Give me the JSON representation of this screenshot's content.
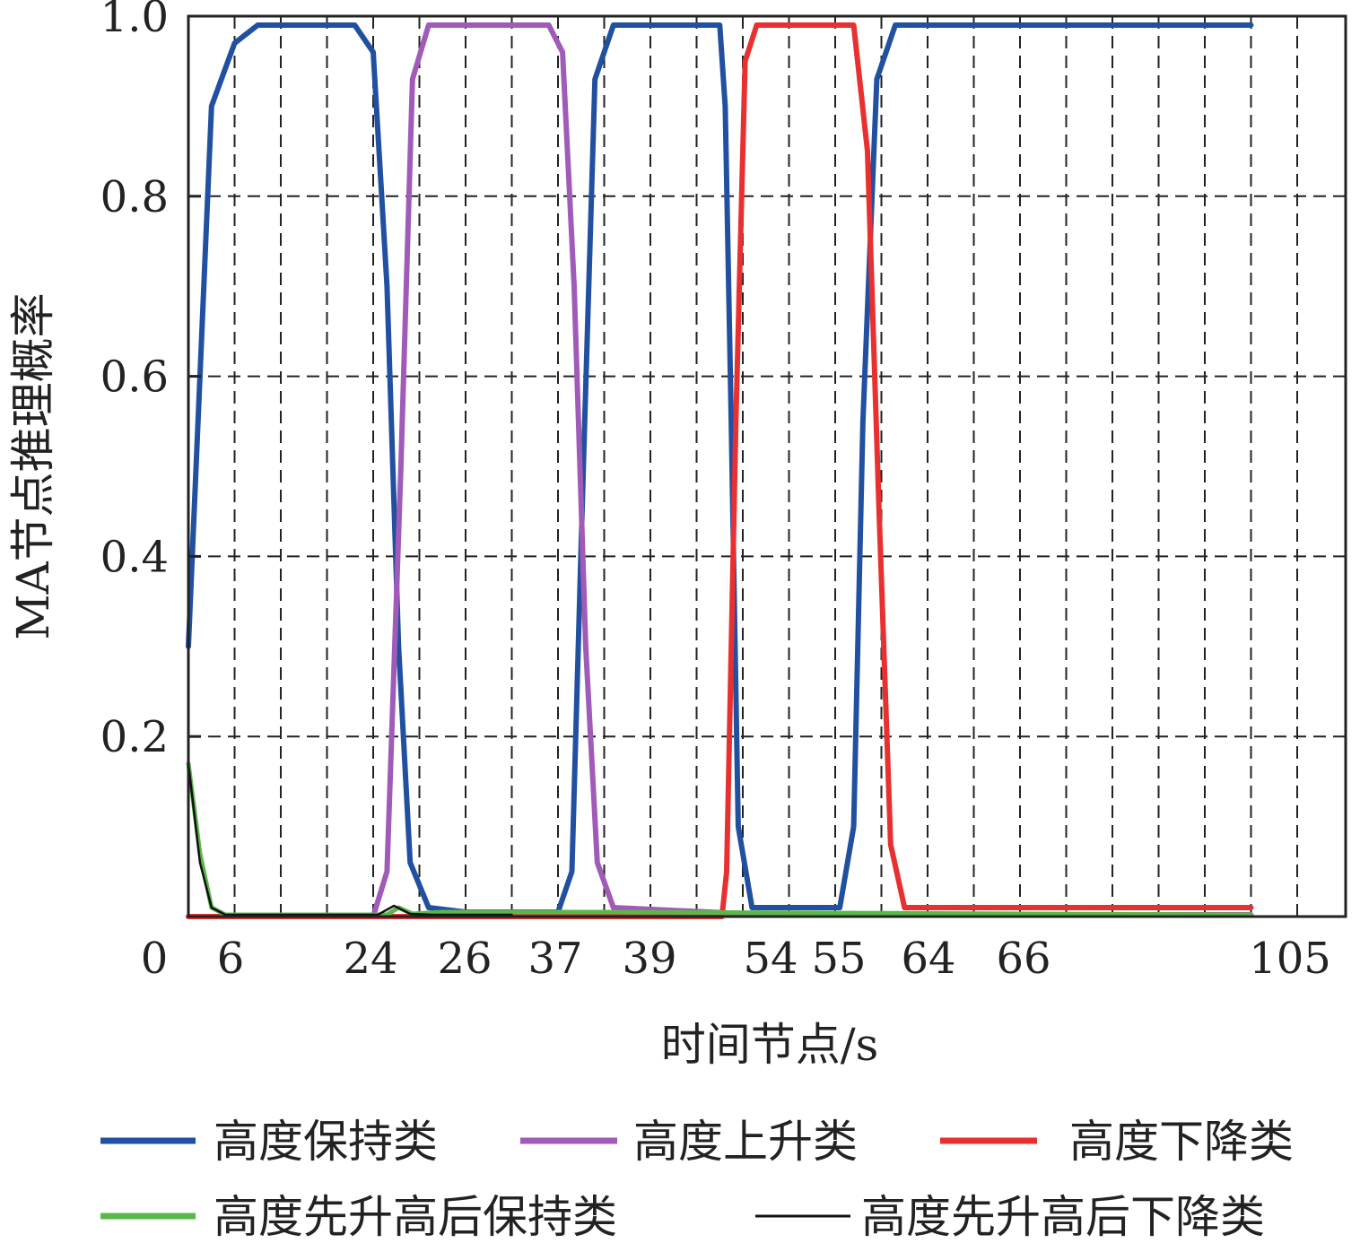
{
  "chart_data": {
    "type": "line",
    "xlabel": "时间节点/s",
    "ylabel": "MA节点推理概率",
    "ylim": [
      0,
      1.0
    ],
    "y_ticks": [
      "0.2",
      "0.4",
      "0.6",
      "0.8",
      "1.0"
    ],
    "x_ticks": [
      "0",
      "6",
      "24",
      "26",
      "37",
      "39",
      "54",
      "55",
      "64",
      "66",
      "105"
    ],
    "grid": true,
    "legend_position": "bottom",
    "series": [
      {
        "name": "高度保持类",
        "color": "#2150a0",
        "points": [
          [
            0,
            0.3
          ],
          [
            0.5,
            0.9
          ],
          [
            1,
            0.97
          ],
          [
            1.5,
            0.99
          ],
          [
            2,
            0.99
          ],
          [
            3.6,
            0.99
          ],
          [
            4.0,
            0.96
          ],
          [
            4.3,
            0.7
          ],
          [
            4.55,
            0.3
          ],
          [
            4.8,
            0.06
          ],
          [
            5.2,
            0.01
          ],
          [
            6,
            0.005
          ],
          [
            8.0,
            0.005
          ],
          [
            8.3,
            0.05
          ],
          [
            8.55,
            0.5
          ],
          [
            8.8,
            0.93
          ],
          [
            9.2,
            0.99
          ],
          [
            11.5,
            0.99
          ],
          [
            11.62,
            0.9
          ],
          [
            11.75,
            0.55
          ],
          [
            11.9,
            0.1
          ],
          [
            12.2,
            0.01
          ],
          [
            14.1,
            0.01
          ],
          [
            14.4,
            0.1
          ],
          [
            14.6,
            0.55
          ],
          [
            14.9,
            0.93
          ],
          [
            15.3,
            0.99
          ],
          [
            23,
            0.99
          ]
        ]
      },
      {
        "name": "高度上升类",
        "color": "#a05bb8",
        "points": [
          [
            0,
            0
          ],
          [
            4,
            0
          ],
          [
            4.3,
            0.05
          ],
          [
            4.6,
            0.5
          ],
          [
            4.85,
            0.93
          ],
          [
            5.2,
            0.99
          ],
          [
            7.8,
            0.99
          ],
          [
            8.1,
            0.96
          ],
          [
            8.35,
            0.7
          ],
          [
            8.6,
            0.3
          ],
          [
            8.85,
            0.06
          ],
          [
            9.2,
            0.01
          ],
          [
            12.5,
            0.002
          ],
          [
            23,
            0.002
          ]
        ]
      },
      {
        "name": "高度下降类",
        "color": "#e83030",
        "points": [
          [
            0,
            0
          ],
          [
            11.55,
            0
          ],
          [
            11.65,
            0.05
          ],
          [
            11.85,
            0.55
          ],
          [
            12.05,
            0.95
          ],
          [
            12.3,
            0.99
          ],
          [
            14.4,
            0.99
          ],
          [
            14.7,
            0.85
          ],
          [
            14.95,
            0.45
          ],
          [
            15.2,
            0.08
          ],
          [
            15.5,
            0.01
          ],
          [
            23,
            0.01
          ]
        ]
      },
      {
        "name": "高度先升高后保持类",
        "color": "#5ab84a",
        "points": [
          [
            0,
            0.17
          ],
          [
            0.25,
            0.07
          ],
          [
            0.5,
            0.01
          ],
          [
            0.8,
            0.002
          ],
          [
            4.3,
            0.002
          ],
          [
            4.55,
            0.01
          ],
          [
            4.85,
            0.003
          ],
          [
            5.5,
            0.005
          ],
          [
            9,
            0.005
          ],
          [
            23,
            0.002
          ]
        ]
      },
      {
        "name": "高度先升高后下降类",
        "color": "#111111",
        "points": [
          [
            0,
            0.17
          ],
          [
            0.25,
            0.06
          ],
          [
            0.5,
            0.01
          ],
          [
            0.8,
            0.002
          ],
          [
            4.1,
            0.002
          ],
          [
            4.45,
            0.012
          ],
          [
            4.8,
            0.003
          ],
          [
            5.3,
            0.002
          ],
          [
            7,
            0.002
          ]
        ]
      }
    ]
  }
}
